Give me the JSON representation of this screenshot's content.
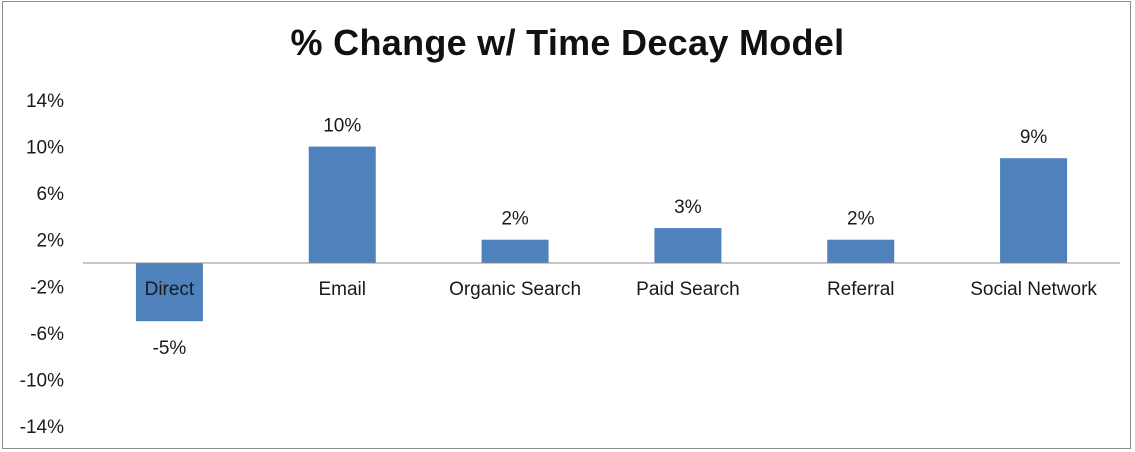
{
  "chart_data": {
    "type": "bar",
    "title": "% Change w/ Time Decay Model",
    "xlabel": "",
    "ylabel": "",
    "categories": [
      "Direct",
      "Email",
      "Organic Search",
      "Paid Search",
      "Referral",
      "Social Network"
    ],
    "values": [
      -5,
      10,
      2,
      3,
      2,
      9
    ],
    "data_labels": [
      "-5%",
      "10%",
      "2%",
      "3%",
      "2%",
      "9%"
    ],
    "ylim": [
      -14,
      14
    ],
    "yticks": [
      14,
      10,
      6,
      2,
      -2,
      -6,
      -10,
      -14
    ],
    "ytick_labels": [
      "14%",
      "10%",
      "6%",
      "2%",
      "-2%",
      "-6%",
      "-10%",
      "-14%"
    ],
    "grid": false,
    "legend": "none",
    "bar_color": "#4f81bd"
  }
}
